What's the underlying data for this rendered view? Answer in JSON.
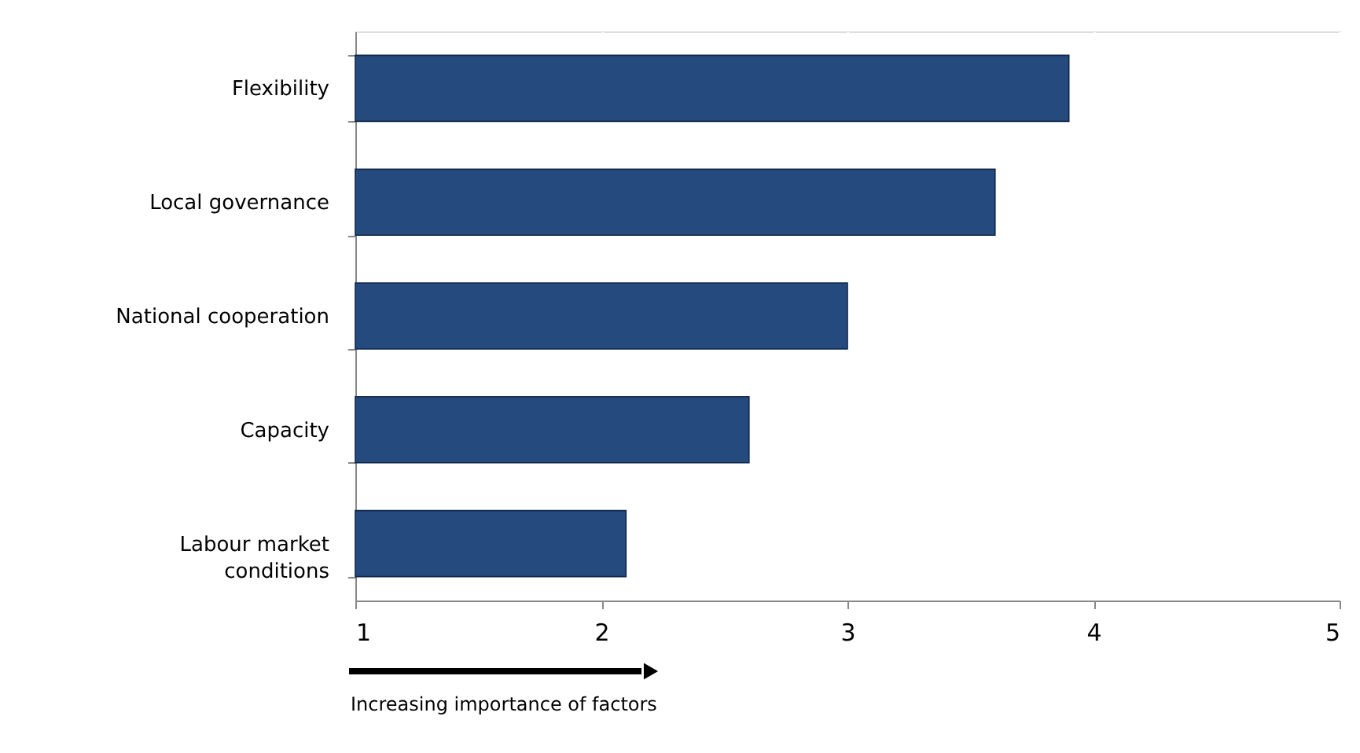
{
  "chart_data": {
    "type": "bar",
    "orientation": "horizontal",
    "categories": [
      "Flexibility",
      "Local governance",
      "National cooperation",
      "Capacity",
      "Labour market conditions"
    ],
    "values": [
      3.9,
      3.6,
      3.0,
      2.6,
      2.1
    ],
    "color": "#254a7e",
    "xlim": [
      1,
      5
    ],
    "xticks": [
      1,
      2,
      3,
      4,
      5
    ],
    "grid": "x",
    "annotations": [
      "Increasing importance of factors"
    ]
  }
}
